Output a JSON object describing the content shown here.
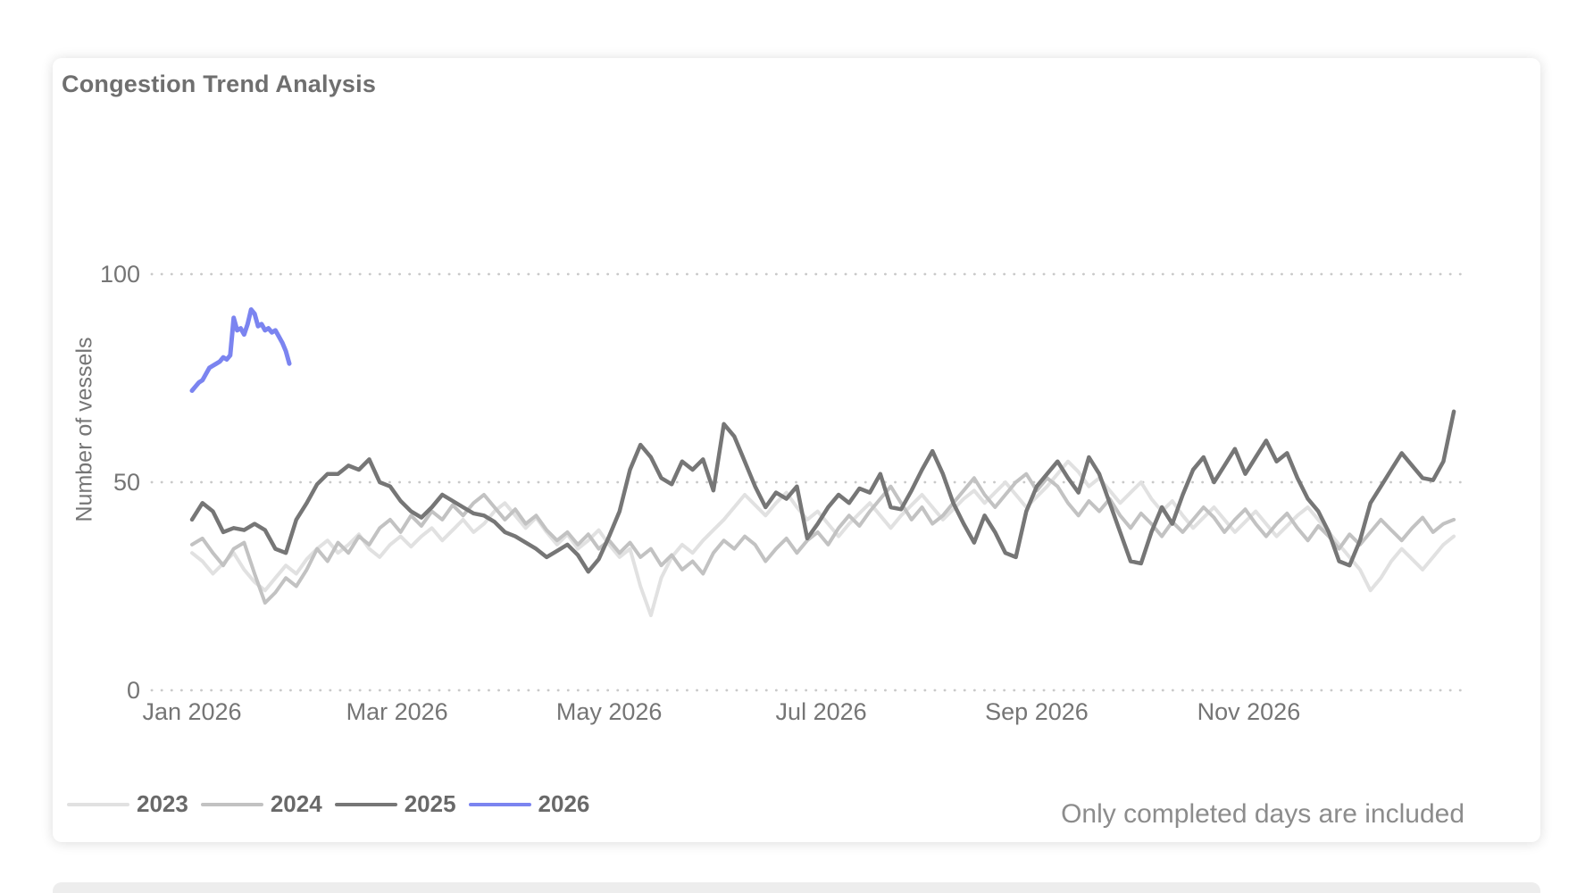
{
  "card": {
    "title": "Congestion Trend Analysis",
    "note": "Only completed days are included"
  },
  "chart_data": {
    "type": "line",
    "title": "Congestion Trend Analysis",
    "xlabel": "",
    "ylabel": "Number of vessels",
    "ylim": [
      0,
      100
    ],
    "yticks": [
      0,
      50,
      100
    ],
    "x_unit": "day_of_year",
    "x_range_days": [
      1,
      365
    ],
    "xticks": [
      {
        "label": "Jan 2026",
        "day": 1
      },
      {
        "label": "Mar 2026",
        "day": 60
      },
      {
        "label": "May 2026",
        "day": 121
      },
      {
        "label": "Jul 2026",
        "day": 182
      },
      {
        "label": "Sep 2026",
        "day": 244
      },
      {
        "label": "Nov 2026",
        "day": 305
      }
    ],
    "grid": "horizontal-dotted",
    "legend_position": "bottom-left",
    "note": "Only completed days are included",
    "series": [
      {
        "name": "2023",
        "color": "#e1e1e1",
        "stroke_width": 4,
        "start_day": 1,
        "step_days": 3,
        "values": [
          33,
          31,
          28,
          30.5,
          33,
          29,
          26,
          24,
          27,
          30,
          28,
          31.5,
          34,
          36,
          33,
          35,
          37.5,
          34,
          32,
          35,
          37,
          34.5,
          37,
          39,
          36,
          38.5,
          41,
          38,
          40,
          43,
          45,
          42,
          39,
          41.5,
          38,
          35,
          37.5,
          34,
          36,
          38.5,
          35,
          32,
          34,
          25,
          18,
          27,
          32,
          35,
          33,
          36,
          38.5,
          41,
          44,
          47,
          44.5,
          42,
          45,
          47.5,
          44,
          41,
          43,
          40,
          37,
          40,
          42.5,
          45,
          42,
          39,
          42,
          44.5,
          47,
          44,
          41,
          43.5,
          46,
          48,
          45,
          47.5,
          50,
          47,
          44,
          46.5,
          49,
          52,
          55,
          52.5,
          49,
          51,
          48,
          45,
          47.5,
          50,
          46,
          43,
          45.5,
          42,
          39,
          41.5,
          44,
          41,
          38,
          40.5,
          43,
          40,
          37,
          39.5,
          42,
          44,
          41,
          38,
          35,
          32,
          29,
          24,
          27,
          31,
          34,
          31.5,
          29,
          32,
          35,
          37
        ]
      },
      {
        "name": "2024",
        "color": "#c2c2c2",
        "stroke_width": 4,
        "start_day": 1,
        "step_days": 3,
        "values": [
          35,
          36.5,
          33,
          30,
          34,
          35.5,
          28,
          21,
          23.5,
          27,
          25,
          29,
          34,
          31,
          35.5,
          33,
          37,
          35,
          39,
          41,
          38,
          42,
          39.5,
          43,
          41,
          44.5,
          42,
          45,
          47,
          44,
          41,
          43.5,
          40,
          42,
          38.5,
          36,
          38,
          35,
          37.5,
          34,
          36,
          33,
          35.5,
          32,
          34,
          30,
          32.5,
          29,
          31,
          28,
          33,
          36,
          34,
          37,
          35,
          31,
          34,
          36.5,
          33,
          36,
          38,
          35,
          39,
          42,
          39.5,
          43,
          46,
          49,
          45,
          41,
          44,
          40,
          42,
          45,
          48,
          51,
          47,
          44,
          47,
          50,
          52,
          48,
          51,
          49,
          45,
          42,
          45.5,
          43,
          46,
          42,
          39,
          42.5,
          40,
          37,
          40.5,
          38,
          41,
          44,
          41.5,
          38,
          41,
          43.5,
          40,
          37,
          40,
          42.5,
          39,
          36,
          39.5,
          37,
          34,
          37.5,
          35,
          38,
          41,
          38.5,
          36,
          39,
          41.5,
          38,
          40,
          41
        ]
      },
      {
        "name": "2025",
        "color": "#767676",
        "stroke_width": 4.5,
        "start_day": 1,
        "step_days": 3,
        "values": [
          41,
          45,
          43,
          38,
          39,
          38.5,
          40,
          38.5,
          34,
          33,
          41,
          45,
          49.5,
          52,
          52,
          54,
          53,
          55.5,
          50,
          49,
          45.5,
          43,
          41.5,
          44,
          47,
          45.5,
          44,
          42.5,
          42,
          40.5,
          38,
          37,
          35.5,
          34,
          32,
          33.5,
          35,
          32.5,
          28.5,
          31.5,
          37,
          43,
          53,
          59,
          56,
          51,
          49.5,
          55,
          53,
          55.5,
          48,
          64,
          61,
          55,
          49,
          44,
          47.5,
          46,
          49,
          36.5,
          40,
          44,
          47,
          45,
          48.5,
          47.5,
          52,
          44,
          43.5,
          48,
          53,
          57.5,
          52,
          45,
          40,
          35.5,
          42,
          38,
          33,
          32,
          43,
          49,
          52,
          55,
          51,
          47.5,
          56,
          52,
          45,
          38,
          31,
          30.5,
          38,
          44,
          40,
          47,
          53,
          56,
          50,
          54,
          58,
          52,
          56,
          60,
          55,
          57,
          51,
          46,
          43,
          38,
          31,
          30,
          36,
          45,
          49,
          53,
          57,
          54,
          51,
          50.5,
          55,
          67
        ]
      },
      {
        "name": "2026",
        "color": "#7b84f0",
        "stroke_width": 5,
        "start_day": 1,
        "step_days": 1,
        "values": [
          72,
          73,
          74,
          74.5,
          76,
          77.5,
          78,
          78.5,
          79,
          80,
          79.5,
          80.5,
          89.5,
          86.5,
          87,
          85.5,
          88,
          91.5,
          90.5,
          87.5,
          88,
          86.5,
          87,
          86,
          86.5,
          85,
          83.5,
          81.5,
          78.5
        ]
      }
    ]
  }
}
